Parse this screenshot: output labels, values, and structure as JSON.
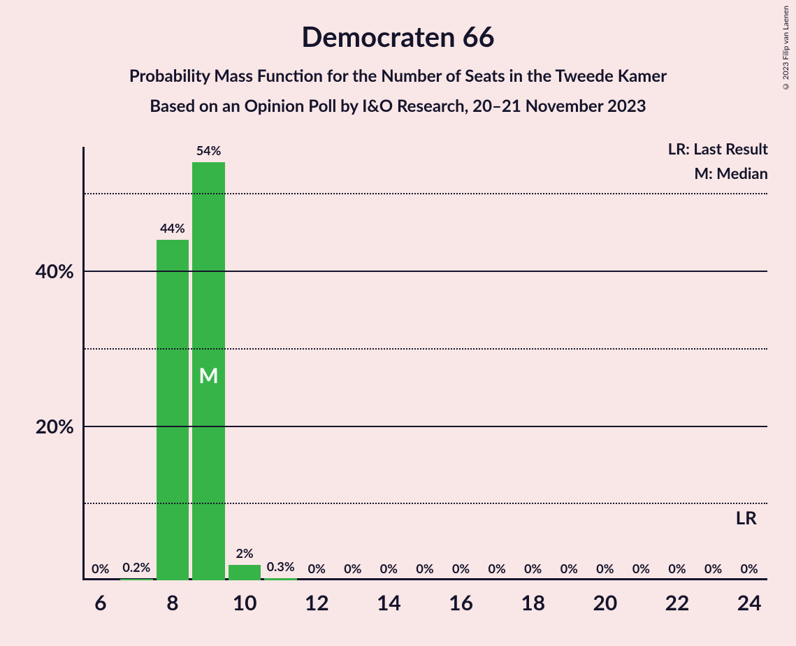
{
  "title": "Democraten 66",
  "subtitle": "Probability Mass Function for the Number of Seats in the Tweede Kamer",
  "subtitle2": "Based on an Opinion Poll by I&O Research, 20–21 November 2023",
  "copyright": "© 2023 Filip van Laenen",
  "legend": {
    "lr": "LR: Last Result",
    "m": "M: Median"
  },
  "chart": {
    "type": "bar",
    "bar_color": "#37b448",
    "background_color": "#f9e6e6",
    "axis_color": "#14142b",
    "grid_solid_color": "#14142b",
    "grid_dotted_color": "#14142b",
    "text_color": "#14142b",
    "median_text_color": "#ffffff",
    "title_fontsize": 40,
    "subtitle_fontsize": 24,
    "axis_label_fontsize": 28,
    "bar_label_fontsize": 18,
    "xtick_fontsize": 30,
    "bar_width_ratio": 0.9,
    "x_range": [
      5.5,
      24.5
    ],
    "y_range": [
      0,
      56
    ],
    "y_ticks_major": [
      20,
      40
    ],
    "y_ticks_minor": [
      10,
      30,
      50
    ],
    "x_ticks": [
      6,
      8,
      10,
      12,
      14,
      16,
      18,
      20,
      22,
      24
    ],
    "categories": [
      6,
      7,
      8,
      9,
      10,
      11,
      12,
      13,
      14,
      15,
      16,
      17,
      18,
      19,
      20,
      21,
      22,
      23,
      24
    ],
    "values": [
      0,
      0.2,
      44,
      54,
      2,
      0.3,
      0,
      0,
      0,
      0,
      0,
      0,
      0,
      0,
      0,
      0,
      0,
      0,
      0
    ],
    "value_labels": [
      "0%",
      "0.2%",
      "44%",
      "54%",
      "2%",
      "0.3%",
      "0%",
      "0%",
      "0%",
      "0%",
      "0%",
      "0%",
      "0%",
      "0%",
      "0%",
      "0%",
      "0%",
      "0%",
      "0%"
    ],
    "median_index": 3,
    "median_label": "M",
    "lr_category": 24,
    "lr_label": "LR"
  }
}
